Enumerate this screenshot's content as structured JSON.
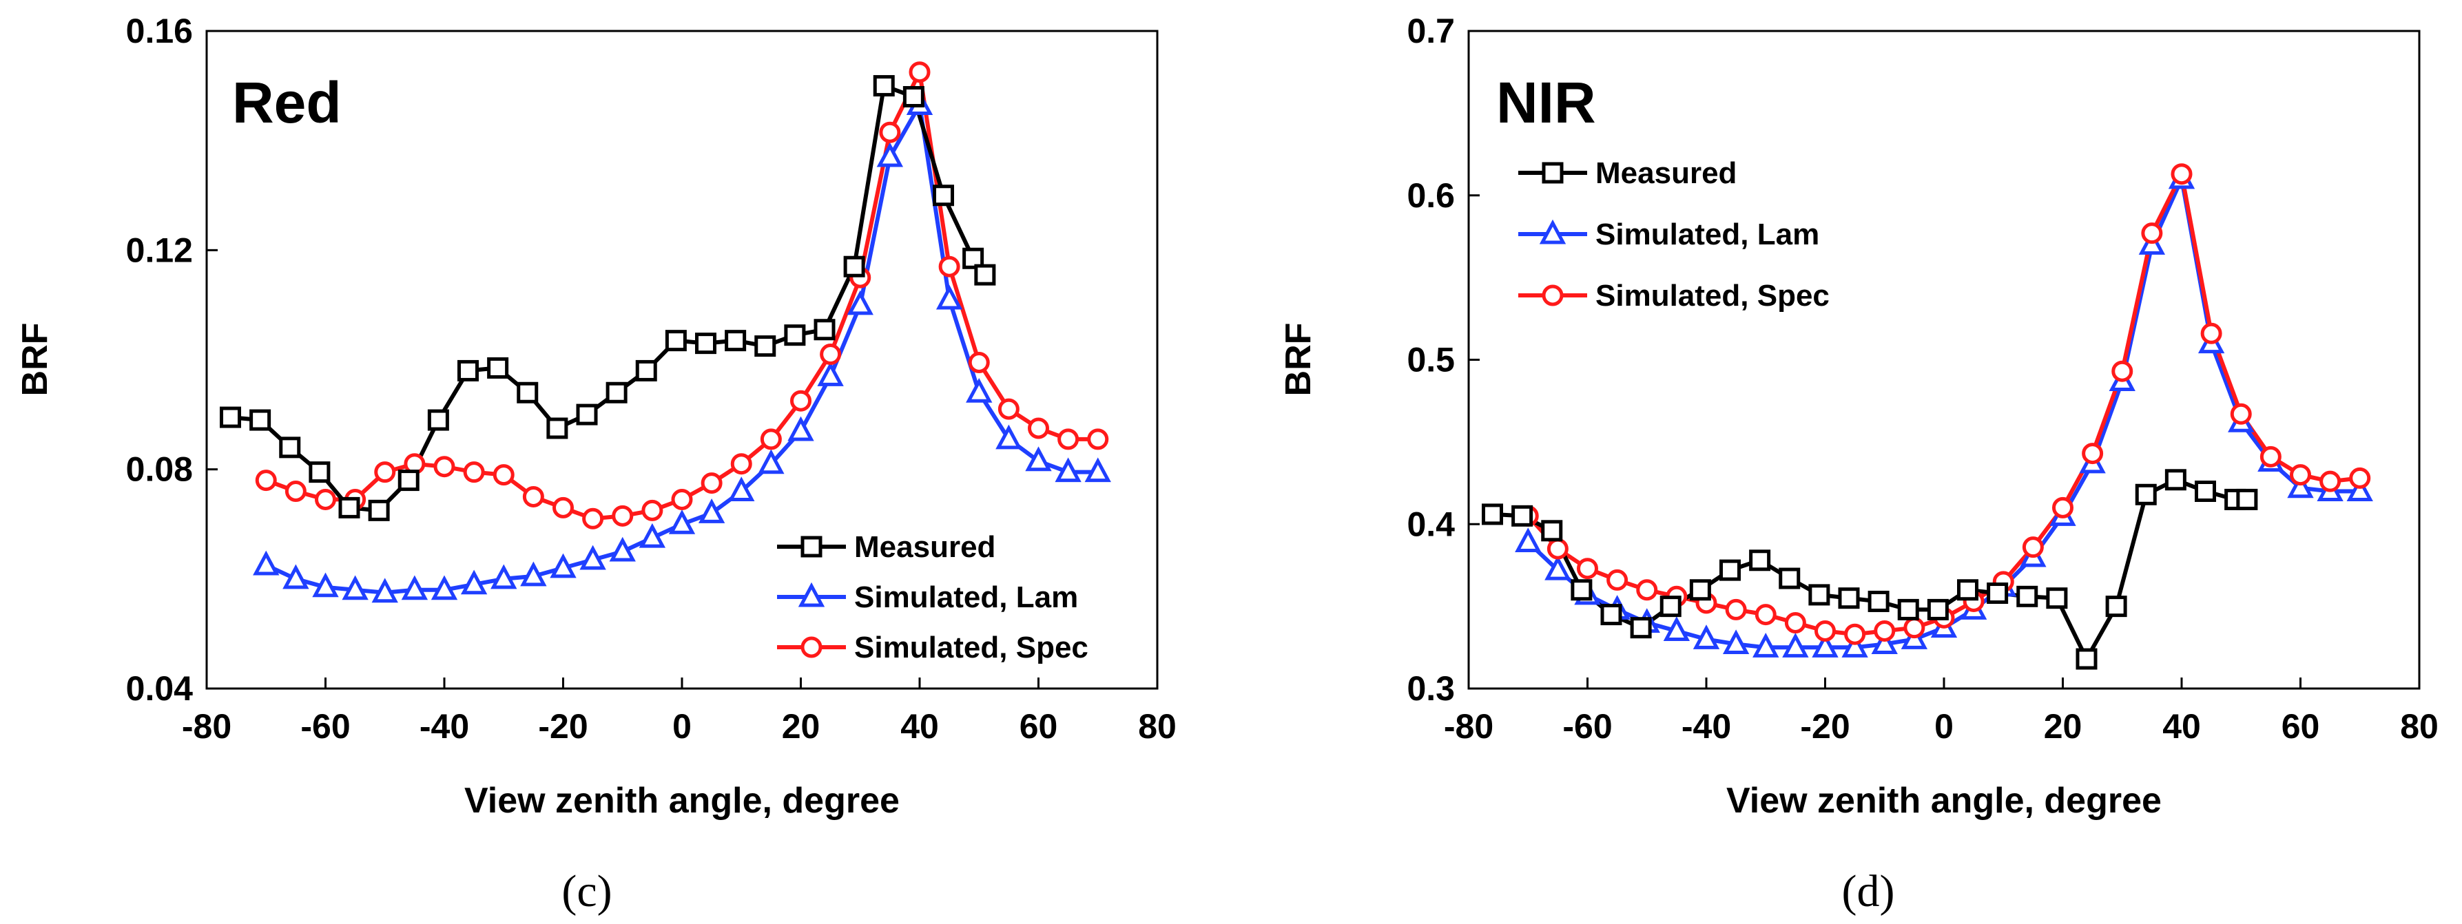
{
  "chart_data": [
    {
      "type": "line",
      "panel_title": "Red",
      "caption": "(c)",
      "xlabel": "View zenith angle, degree",
      "ylabel": "BRF",
      "xlim": [
        -80,
        80
      ],
      "ylim": [
        0.04,
        0.16
      ],
      "xticks": [
        -80,
        -60,
        -40,
        -20,
        0,
        20,
        40,
        60,
        80
      ],
      "yticks": [
        0.04,
        0.08,
        0.12,
        0.16
      ],
      "xtick_labels": [
        "-80",
        "-60",
        "-40",
        "-20",
        "0",
        "20",
        "40",
        "60",
        "80"
      ],
      "ytick_labels": [
        "0.04",
        "0.08",
        "0.12",
        "0.16"
      ],
      "legend_position": "bottom-right",
      "series": [
        {
          "name": "Measured",
          "color": "#000000",
          "marker": "square",
          "x": [
            -76,
            -71,
            -66,
            -61,
            -56,
            -51,
            -46,
            -41,
            -36,
            -31,
            -26,
            -21,
            -16,
            -11,
            -6,
            -1,
            4,
            9,
            14,
            19,
            24,
            29,
            34,
            39,
            44,
            49,
            51
          ],
          "y": [
            0.0895,
            0.089,
            0.084,
            0.0795,
            0.073,
            0.0725,
            0.078,
            0.089,
            0.098,
            0.0985,
            0.094,
            0.0875,
            0.09,
            0.094,
            0.098,
            0.1035,
            0.103,
            0.1035,
            0.1025,
            0.1045,
            0.1055,
            0.117,
            0.15,
            0.148,
            0.13,
            0.1185,
            0.1155
          ]
        },
        {
          "name": "Simulated, Lam",
          "color": "#1f3fff",
          "marker": "triangle",
          "x": [
            -70,
            -65,
            -60,
            -55,
            -50,
            -45,
            -40,
            -35,
            -30,
            -25,
            -20,
            -15,
            -10,
            -5,
            0,
            5,
            10,
            15,
            20,
            25,
            30,
            35,
            40,
            45,
            50,
            55,
            60,
            65,
            70
          ],
          "y": [
            0.0625,
            0.06,
            0.0585,
            0.058,
            0.0575,
            0.058,
            0.058,
            0.059,
            0.06,
            0.0605,
            0.062,
            0.0635,
            0.065,
            0.0675,
            0.07,
            0.072,
            0.076,
            0.081,
            0.087,
            0.097,
            0.11,
            0.137,
            0.1465,
            0.111,
            0.094,
            0.0855,
            0.0815,
            0.0795,
            0.0795
          ]
        },
        {
          "name": "Simulated, Spec",
          "color": "#ff1a1a",
          "marker": "circle",
          "x": [
            -70,
            -65,
            -60,
            -55,
            -50,
            -45,
            -40,
            -35,
            -30,
            -25,
            -20,
            -15,
            -10,
            -5,
            0,
            5,
            10,
            15,
            20,
            25,
            30,
            35,
            40,
            45,
            50,
            55,
            60,
            65,
            70
          ],
          "y": [
            0.078,
            0.076,
            0.0745,
            0.0745,
            0.0795,
            0.081,
            0.0805,
            0.0795,
            0.079,
            0.075,
            0.073,
            0.071,
            0.0715,
            0.0725,
            0.0745,
            0.0775,
            0.081,
            0.0855,
            0.0925,
            0.101,
            0.115,
            0.1415,
            0.1525,
            0.117,
            0.0995,
            0.091,
            0.0875,
            0.0855,
            0.0855
          ]
        }
      ]
    },
    {
      "type": "line",
      "panel_title": "NIR",
      "caption": "(d)",
      "xlabel": "View zenith angle, degree",
      "ylabel": "BRF",
      "xlim": [
        -80,
        80
      ],
      "ylim": [
        0.3,
        0.7
      ],
      "xticks": [
        -80,
        -60,
        -40,
        -20,
        0,
        20,
        40,
        60,
        80
      ],
      "yticks": [
        0.3,
        0.4,
        0.5,
        0.6,
        0.7
      ],
      "xtick_labels": [
        "-80",
        "-60",
        "-40",
        "-20",
        "0",
        "20",
        "40",
        "60",
        "80"
      ],
      "ytick_labels": [
        "0.3",
        "0.4",
        "0.5",
        "0.6",
        "0.7"
      ],
      "legend_position": "top-left",
      "series": [
        {
          "name": "Measured",
          "color": "#000000",
          "marker": "square",
          "x": [
            -76,
            -71,
            -66,
            -61,
            -56,
            -51,
            -46,
            -41,
            -36,
            -31,
            -26,
            -21,
            -16,
            -11,
            -6,
            -1,
            4,
            9,
            14,
            19,
            24,
            29,
            34,
            39,
            44,
            49,
            51
          ],
          "y": [
            0.406,
            0.405,
            0.396,
            0.36,
            0.345,
            0.337,
            0.35,
            0.36,
            0.372,
            0.378,
            0.367,
            0.357,
            0.355,
            0.353,
            0.348,
            0.348,
            0.36,
            0.358,
            0.356,
            0.355,
            0.318,
            0.35,
            0.418,
            0.427,
            0.42,
            0.415,
            0.415
          ]
        },
        {
          "name": "Simulated, Lam",
          "color": "#1f3fff",
          "marker": "triangle",
          "x": [
            -70,
            -65,
            -60,
            -55,
            -50,
            -45,
            -40,
            -35,
            -30,
            -25,
            -20,
            -15,
            -10,
            -5,
            0,
            5,
            10,
            15,
            20,
            25,
            30,
            35,
            40,
            45,
            50,
            55,
            60,
            65,
            70
          ],
          "y": [
            0.389,
            0.372,
            0.357,
            0.348,
            0.34,
            0.335,
            0.33,
            0.327,
            0.325,
            0.325,
            0.325,
            0.325,
            0.327,
            0.33,
            0.337,
            0.348,
            0.362,
            0.38,
            0.405,
            0.437,
            0.487,
            0.57,
            0.61,
            0.51,
            0.462,
            0.438,
            0.422,
            0.42,
            0.42
          ]
        },
        {
          "name": "Simulated, Spec",
          "color": "#ff1a1a",
          "marker": "circle",
          "x": [
            -70,
            -65,
            -60,
            -55,
            -50,
            -45,
            -40,
            -35,
            -30,
            -25,
            -20,
            -15,
            -10,
            -5,
            0,
            5,
            10,
            15,
            20,
            25,
            30,
            35,
            40,
            45,
            50,
            55,
            60,
            65,
            70
          ],
          "y": [
            0.405,
            0.385,
            0.373,
            0.366,
            0.36,
            0.356,
            0.352,
            0.348,
            0.345,
            0.34,
            0.335,
            0.333,
            0.335,
            0.337,
            0.343,
            0.353,
            0.365,
            0.386,
            0.41,
            0.443,
            0.493,
            0.577,
            0.613,
            0.516,
            0.467,
            0.441,
            0.43,
            0.426,
            0.428
          ]
        }
      ]
    }
  ]
}
